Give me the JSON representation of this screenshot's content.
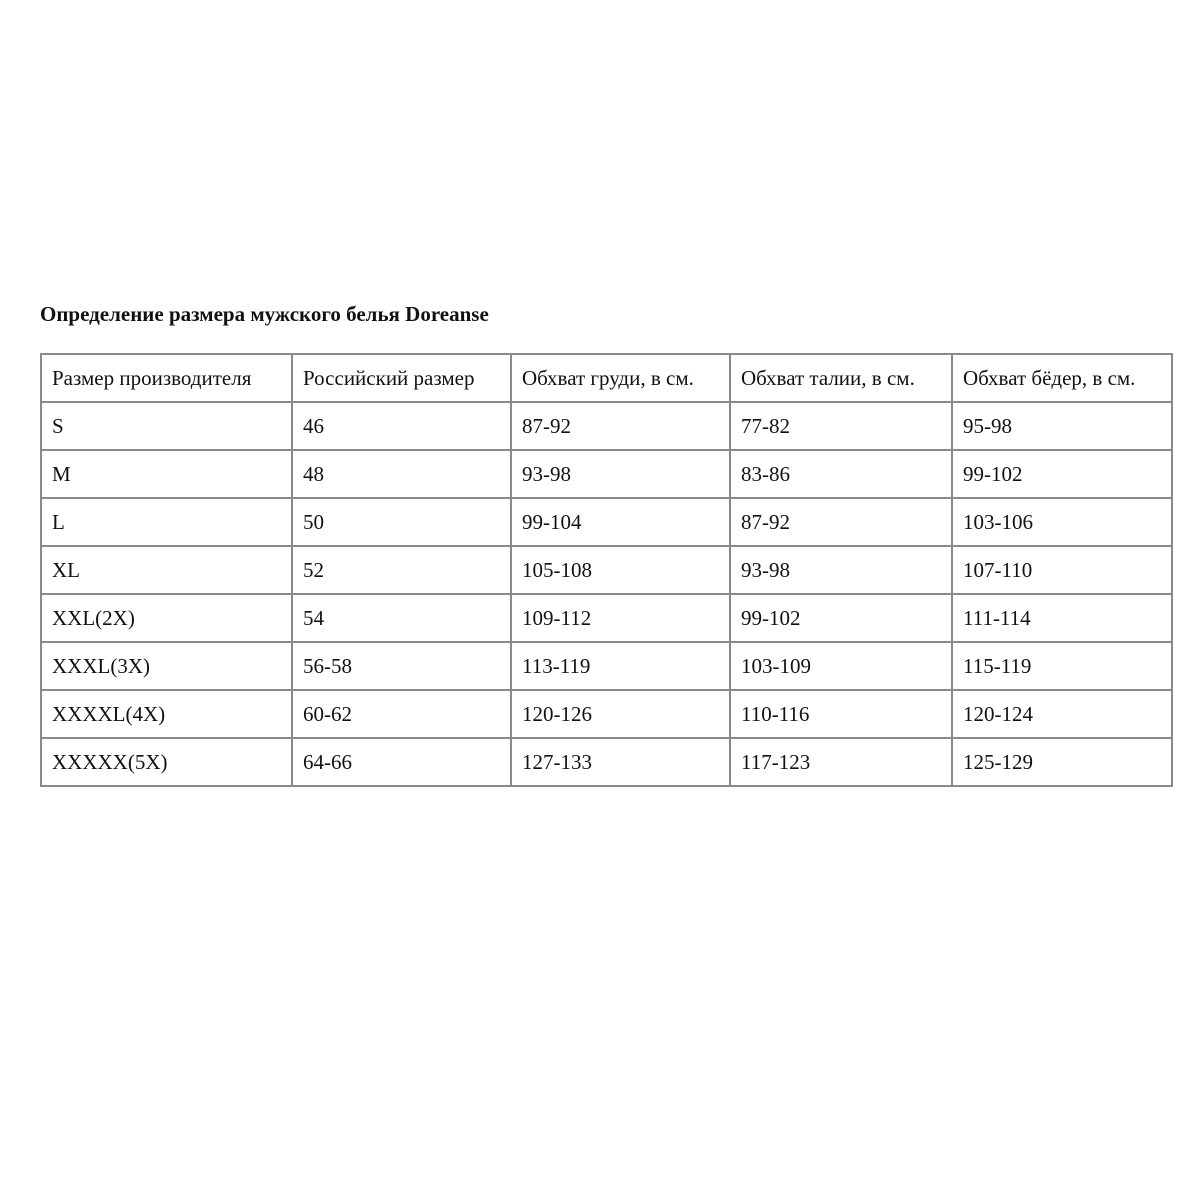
{
  "title": "Определение размера мужского белья Doreanse",
  "table": {
    "headers": [
      "Размер производителя",
      "Российский размер",
      "Обхват груди, в см.",
      "Обхват талии, в см.",
      "Обхват бёдер, в см."
    ],
    "rows": [
      [
        "S",
        "46",
        "87-92",
        "77-82",
        "95-98"
      ],
      [
        "M",
        "48",
        "93-98",
        "83-86",
        "99-102"
      ],
      [
        "L",
        "50",
        "99-104",
        "87-92",
        "103-106"
      ],
      [
        "XL",
        "52",
        "105-108",
        "93-98",
        "107-110"
      ],
      [
        "XXL(2X)",
        "54",
        "109-112",
        "99-102",
        "111-114"
      ],
      [
        "XXXL(3X)",
        "56-58",
        "113-119",
        "103-109",
        "115-119"
      ],
      [
        "XXXXL(4X)",
        "60-62",
        "120-126",
        "110-116",
        "120-124"
      ],
      [
        "XXXXX(5X)",
        "64-66",
        "127-133",
        "117-123",
        "125-129"
      ]
    ]
  }
}
